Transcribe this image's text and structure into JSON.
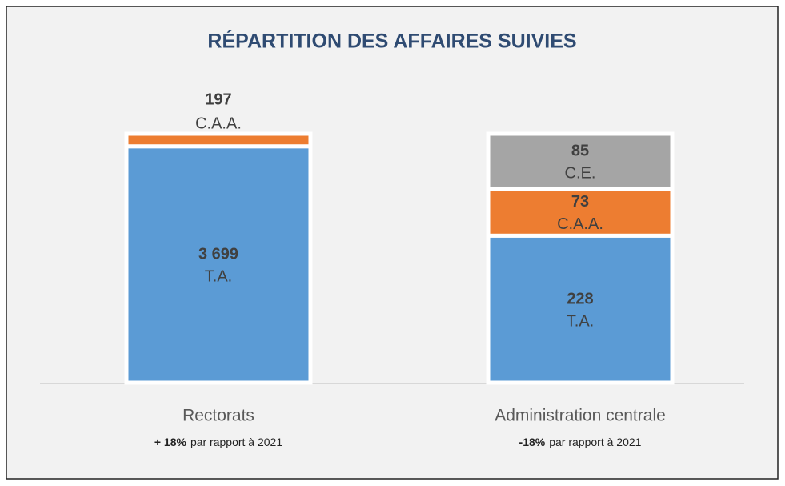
{
  "chart_data": {
    "type": "bar",
    "stacked": "percent",
    "title": "RÉPARTITION DES AFFAIRES SUIVIES",
    "categories": [
      "Rectorats",
      "Administration centrale"
    ],
    "change_notes": [
      {
        "change": "+ 18%",
        "text": "par rapport à 2021"
      },
      {
        "change": "-18%",
        "text": "par rapport à 2021"
      }
    ],
    "series": [
      {
        "name": "T.A.",
        "color": "#5b9bd5",
        "values": [
          3699,
          228
        ],
        "value_labels": [
          "3 699",
          "228"
        ]
      },
      {
        "name": "C.A.A.",
        "color": "#ed7d31",
        "values": [
          197,
          73
        ],
        "value_labels": [
          "197",
          "73"
        ]
      },
      {
        "name": "C.E.",
        "color": "#a5a5a5",
        "values": [
          null,
          85
        ],
        "value_labels": [
          null,
          "85"
        ]
      }
    ]
  }
}
